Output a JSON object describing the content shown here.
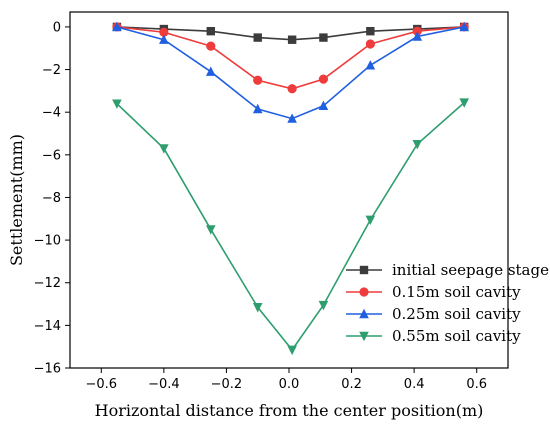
{
  "chart_data": {
    "type": "line",
    "title": "",
    "xlabel": "Horizontal distance from the center position(m)",
    "ylabel": "Settlement(mm)",
    "xlim": [
      -0.7,
      0.7
    ],
    "ylim": [
      -16,
      0.7
    ],
    "xticks": [
      -0.6,
      -0.4,
      -0.2,
      0.0,
      0.2,
      0.4,
      0.6
    ],
    "xtick_labels": [
      "−0.6",
      "−0.4",
      "−0.2",
      "0.0",
      "0.2",
      "0.4",
      "0.6"
    ],
    "yticks": [
      0,
      -2,
      -4,
      -6,
      -8,
      -10,
      -12,
      -14,
      -16
    ],
    "ytick_labels": [
      "0",
      "−2",
      "−4",
      "−6",
      "−8",
      "−10",
      "−12",
      "−14",
      "−16"
    ],
    "grid": false,
    "legend_position": "bottom-right",
    "x": [
      -0.55,
      -0.4,
      -0.25,
      -0.1,
      0.01,
      0.11,
      0.26,
      0.41,
      0.56
    ],
    "series": [
      {
        "name": "initial seepage stage",
        "marker": "square",
        "color": "#3c3c3c",
        "values": [
          0,
          -0.1,
          -0.2,
          -0.5,
          -0.6,
          -0.5,
          -0.2,
          -0.1,
          0
        ]
      },
      {
        "name": "0.15m soil cavity",
        "marker": "circle",
        "color": "#ee3b3b",
        "values": [
          0,
          -0.25,
          -0.9,
          -2.5,
          -2.9,
          -2.45,
          -0.8,
          -0.2,
          0
        ]
      },
      {
        "name": "0.25m soil cavity",
        "marker": "triangle-up",
        "color": "#1f5fe0",
        "values": [
          0,
          -0.6,
          -2.1,
          -3.85,
          -4.3,
          -3.7,
          -1.8,
          -0.45,
          0
        ]
      },
      {
        "name": "0.55m soil cavity",
        "marker": "triangle-down",
        "color": "#2e9e6e",
        "values": [
          -3.6,
          -5.7,
          -9.5,
          -13.15,
          -15.15,
          -13.05,
          -9.05,
          -5.5,
          -3.55
        ]
      }
    ]
  }
}
